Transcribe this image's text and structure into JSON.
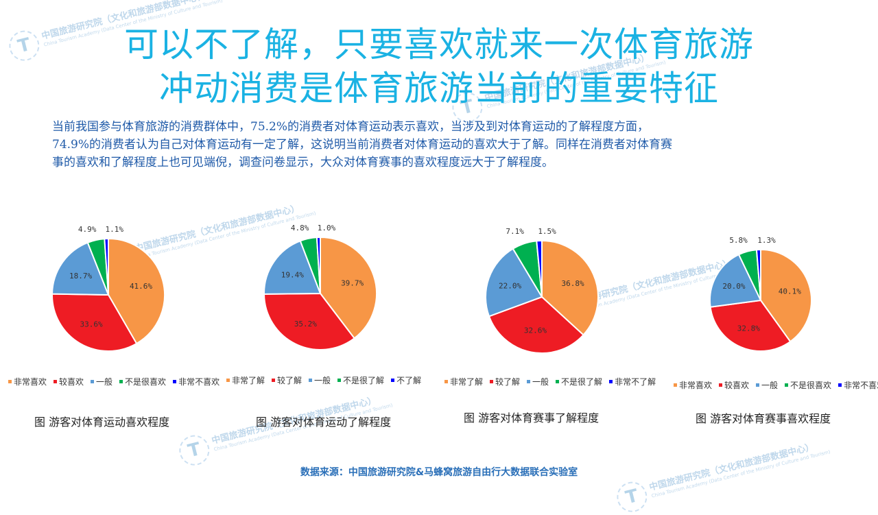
{
  "title": {
    "line1": "可以不了解，只要喜欢就来一次体育旅游",
    "line2": "冲动消费是体育旅游当前的重要特征"
  },
  "description": {
    "line1": "当前我国参与体育旅游的消费群体中，75.2%的消费者对体育运动表示喜欢，当涉及到对体育运动的了解程度方面，",
    "line2": "74.9%的消费者认为自己对体育运动有一定了解，这说明当前消费者对体育运动的喜欢大于了解。同样在消费者对体育赛",
    "line3": "事的喜欢和了解程度上也可见端倪，调查问卷显示，大众对体育赛事的喜欢程度远大于了解程度。"
  },
  "watermark": {
    "cn": "中国旅游研究院（文化和旅游部数据中心）",
    "en": "China Tourism Academy (Data Center of the Ministry of Culture and Tourism)",
    "logo_letter": "T"
  },
  "source": "数据来源：中国旅游研究院&马蜂窝旅游自由行大数据联合实验室",
  "colors": [
    "#f79646",
    "#ee1c24",
    "#5b9bd5",
    "#00b050",
    "#0000ff"
  ],
  "chart_data": [
    {
      "type": "pie",
      "caption": "图  游客对体育运动喜欢程度",
      "labels": [
        "非常喜欢",
        "较喜欢",
        "一般",
        "不是很喜欢",
        "非常不喜欢"
      ],
      "values": [
        41.6,
        33.6,
        18.7,
        4.9,
        1.1
      ],
      "value_labels": [
        "41.6%",
        "33.6%",
        "18.7%",
        "4.9%",
        "1.1%"
      ],
      "legend_position": "bottom"
    },
    {
      "type": "pie",
      "caption": "图  游客对体育运动了解程度",
      "labels": [
        "非常了解",
        "较了解",
        "一般",
        "不是很了解",
        "不了解"
      ],
      "values": [
        39.7,
        35.2,
        19.4,
        4.8,
        1.0
      ],
      "value_labels": [
        "39.7%",
        "35.2%",
        "19.4%",
        "4.8%",
        "1.0%"
      ],
      "legend_position": "bottom"
    },
    {
      "type": "pie",
      "caption": "图  游客对体育赛事了解程度",
      "labels": [
        "非常了解",
        "较了解",
        "一般",
        "不是很了解",
        "非常不了解"
      ],
      "values": [
        36.8,
        32.6,
        22.0,
        7.1,
        1.5
      ],
      "value_labels": [
        "36.8%",
        "32.6%",
        "22.0%",
        "7.1%",
        "1.5%"
      ],
      "legend_position": "bottom"
    },
    {
      "type": "pie",
      "caption": "图  游客对体育赛事喜欢程度",
      "labels": [
        "非常喜欢",
        "较喜欢",
        "一般",
        "不是很喜欢",
        "非常不喜欢"
      ],
      "values": [
        40.1,
        32.8,
        20.0,
        5.8,
        1.3
      ],
      "value_labels": [
        "40.1%",
        "32.8%",
        "20.0%",
        "5.8%",
        "1.3%"
      ],
      "legend_position": "bottom"
    }
  ]
}
